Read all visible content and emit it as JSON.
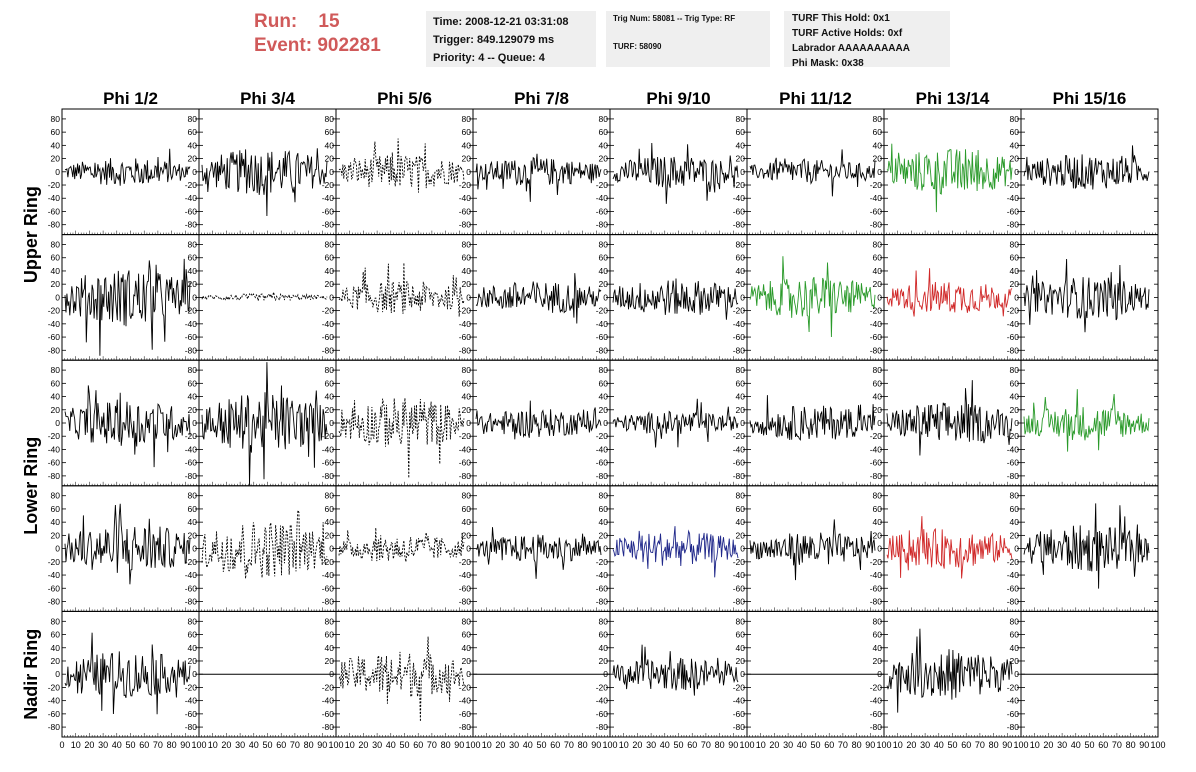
{
  "header": {
    "run_label": "Run:",
    "run_value": "15",
    "event_label": "Event:",
    "event_value": "902281"
  },
  "info_time": {
    "time": "Time: 2008-12-21 03:31:08",
    "trigger": "Trigger: 849.129079 ms",
    "priority": "Priority: 4 -- Queue: 4"
  },
  "info_trig": {
    "trig": "Trig Num: 58081 -- Trig Type: RF",
    "turf": "TURF: 58090"
  },
  "info_turf": {
    "this_hold": "TURF This Hold: 0x1",
    "active_holds": "TURF Active Holds: 0xf",
    "labrador": "Labrador AAAAAAAAAA",
    "phi_mask": "Phi Mask: 0x38"
  },
  "chart_data": {
    "type": "line",
    "columns": [
      "Phi 1/2",
      "Phi 3/4",
      "Phi 5/6",
      "Phi 7/8",
      "Phi 9/10",
      "Phi 11/12",
      "Phi 13/14",
      "Phi 15/16"
    ],
    "ring_labels": [
      {
        "label": "Upper Ring",
        "rows": [
          0,
          1
        ]
      },
      {
        "label": "Lower Ring",
        "rows": [
          2,
          3
        ]
      },
      {
        "label": "Nadir Ring",
        "rows": [
          4
        ]
      }
    ],
    "ylim": [
      -95,
      95
    ],
    "yticks": [
      -80,
      -60,
      -40,
      -20,
      0,
      20,
      40,
      60,
      80
    ],
    "xlim": [
      0,
      100
    ],
    "xticks": [
      0,
      10,
      20,
      30,
      40,
      50,
      60,
      70,
      80,
      90,
      100
    ],
    "x_range": [
      0,
      100
    ],
    "colors": {
      "normal": "#000000",
      "green": "#2a9a2a",
      "red": "#d02828",
      "blue": "#20288a"
    },
    "cells": [
      [
        {
          "style": "solid",
          "color": "normal",
          "amp": 12
        },
        {
          "style": "solid",
          "color": "normal",
          "amp": 20
        },
        {
          "style": "dashed",
          "color": "normal",
          "amp": 15
        },
        {
          "style": "solid",
          "color": "normal",
          "amp": 12
        },
        {
          "style": "solid",
          "color": "normal",
          "amp": 14
        },
        {
          "style": "solid",
          "color": "normal",
          "amp": 10
        },
        {
          "style": "solid",
          "color": "green",
          "amp": 20
        },
        {
          "style": "solid",
          "color": "normal",
          "amp": 15
        }
      ],
      [
        {
          "style": "solid",
          "color": "normal",
          "amp": 25
        },
        {
          "style": "dashed",
          "color": "normal",
          "amp": 3
        },
        {
          "style": "dashed",
          "color": "normal",
          "amp": 14
        },
        {
          "style": "solid",
          "color": "normal",
          "amp": 14
        },
        {
          "style": "solid",
          "color": "normal",
          "amp": 16
        },
        {
          "style": "solid",
          "color": "green",
          "amp": 18
        },
        {
          "style": "solid",
          "color": "red",
          "amp": 14
        },
        {
          "style": "solid",
          "color": "normal",
          "amp": 18
        }
      ],
      [
        {
          "style": "solid",
          "color": "normal",
          "amp": 20
        },
        {
          "style": "solid",
          "color": "normal",
          "amp": 26
        },
        {
          "style": "dashed",
          "color": "normal",
          "amp": 22
        },
        {
          "style": "solid",
          "color": "normal",
          "amp": 12
        },
        {
          "style": "solid",
          "color": "normal",
          "amp": 10
        },
        {
          "style": "solid",
          "color": "normal",
          "amp": 15
        },
        {
          "style": "solid",
          "color": "normal",
          "amp": 18
        },
        {
          "style": "solid",
          "color": "green",
          "amp": 15
        }
      ],
      [
        {
          "style": "solid",
          "color": "normal",
          "amp": 22
        },
        {
          "style": "dashed",
          "color": "normal",
          "amp": 25
        },
        {
          "style": "dashed",
          "color": "normal",
          "amp": 12
        },
        {
          "style": "solid",
          "color": "normal",
          "amp": 12
        },
        {
          "style": "solid",
          "color": "blue",
          "amp": 15
        },
        {
          "style": "solid",
          "color": "normal",
          "amp": 14
        },
        {
          "style": "solid",
          "color": "red",
          "amp": 17
        },
        {
          "style": "solid",
          "color": "normal",
          "amp": 20
        }
      ],
      [
        {
          "style": "solid",
          "color": "normal",
          "amp": 20
        },
        {
          "style": "flat",
          "color": "normal",
          "amp": 0
        },
        {
          "style": "dashed",
          "color": "normal",
          "amp": 20
        },
        {
          "style": "flat",
          "color": "normal",
          "amp": 0
        },
        {
          "style": "solid",
          "color": "normal",
          "amp": 14
        },
        {
          "style": "flat",
          "color": "normal",
          "amp": 0
        },
        {
          "style": "solid",
          "color": "normal",
          "amp": 22
        },
        {
          "style": "flat",
          "color": "normal",
          "amp": 0
        }
      ]
    ]
  }
}
